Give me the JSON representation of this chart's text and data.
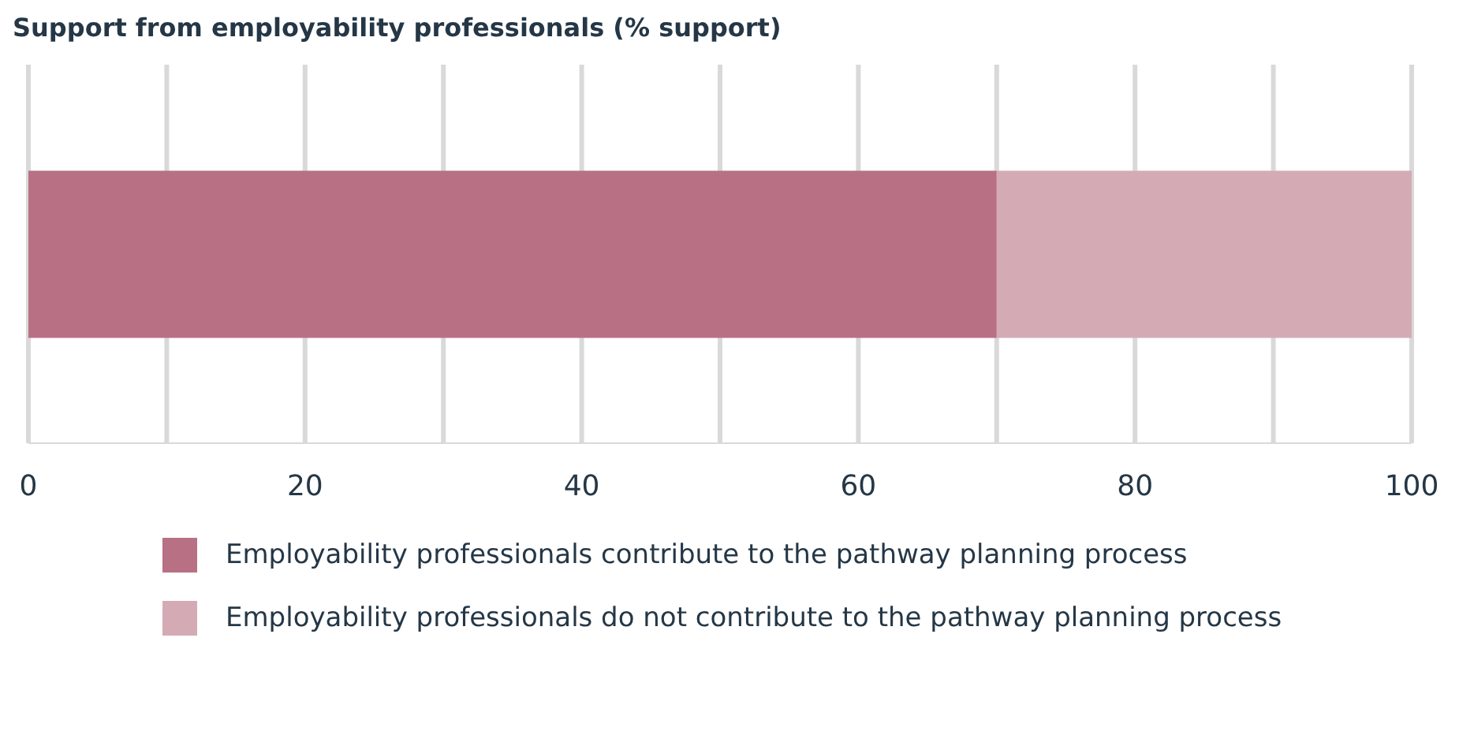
{
  "chart_data": {
    "type": "bar",
    "title": "Support from employability professionals (% support)",
    "orientation": "horizontal",
    "stacked": true,
    "categories": [
      null
    ],
    "series": [
      {
        "name": "Employability professionals contribute to the pathway planning process",
        "color": "#b87085",
        "values": [
          70
        ]
      },
      {
        "name": "Employability professionals do not contribute to the pathway planning process",
        "color": "#d4abb5",
        "values": [
          30
        ]
      }
    ],
    "xlim": [
      0,
      100
    ],
    "xticks": [
      0,
      {
        "value": 10,
        "label": null
      },
      20,
      {
        "value": 30,
        "label": null
      },
      40,
      {
        "value": 50,
        "label": null
      },
      60,
      {
        "value": 70,
        "label": null
      },
      80,
      {
        "value": 90,
        "label": null
      },
      100
    ],
    "grid": "x",
    "legend": "bottom"
  }
}
